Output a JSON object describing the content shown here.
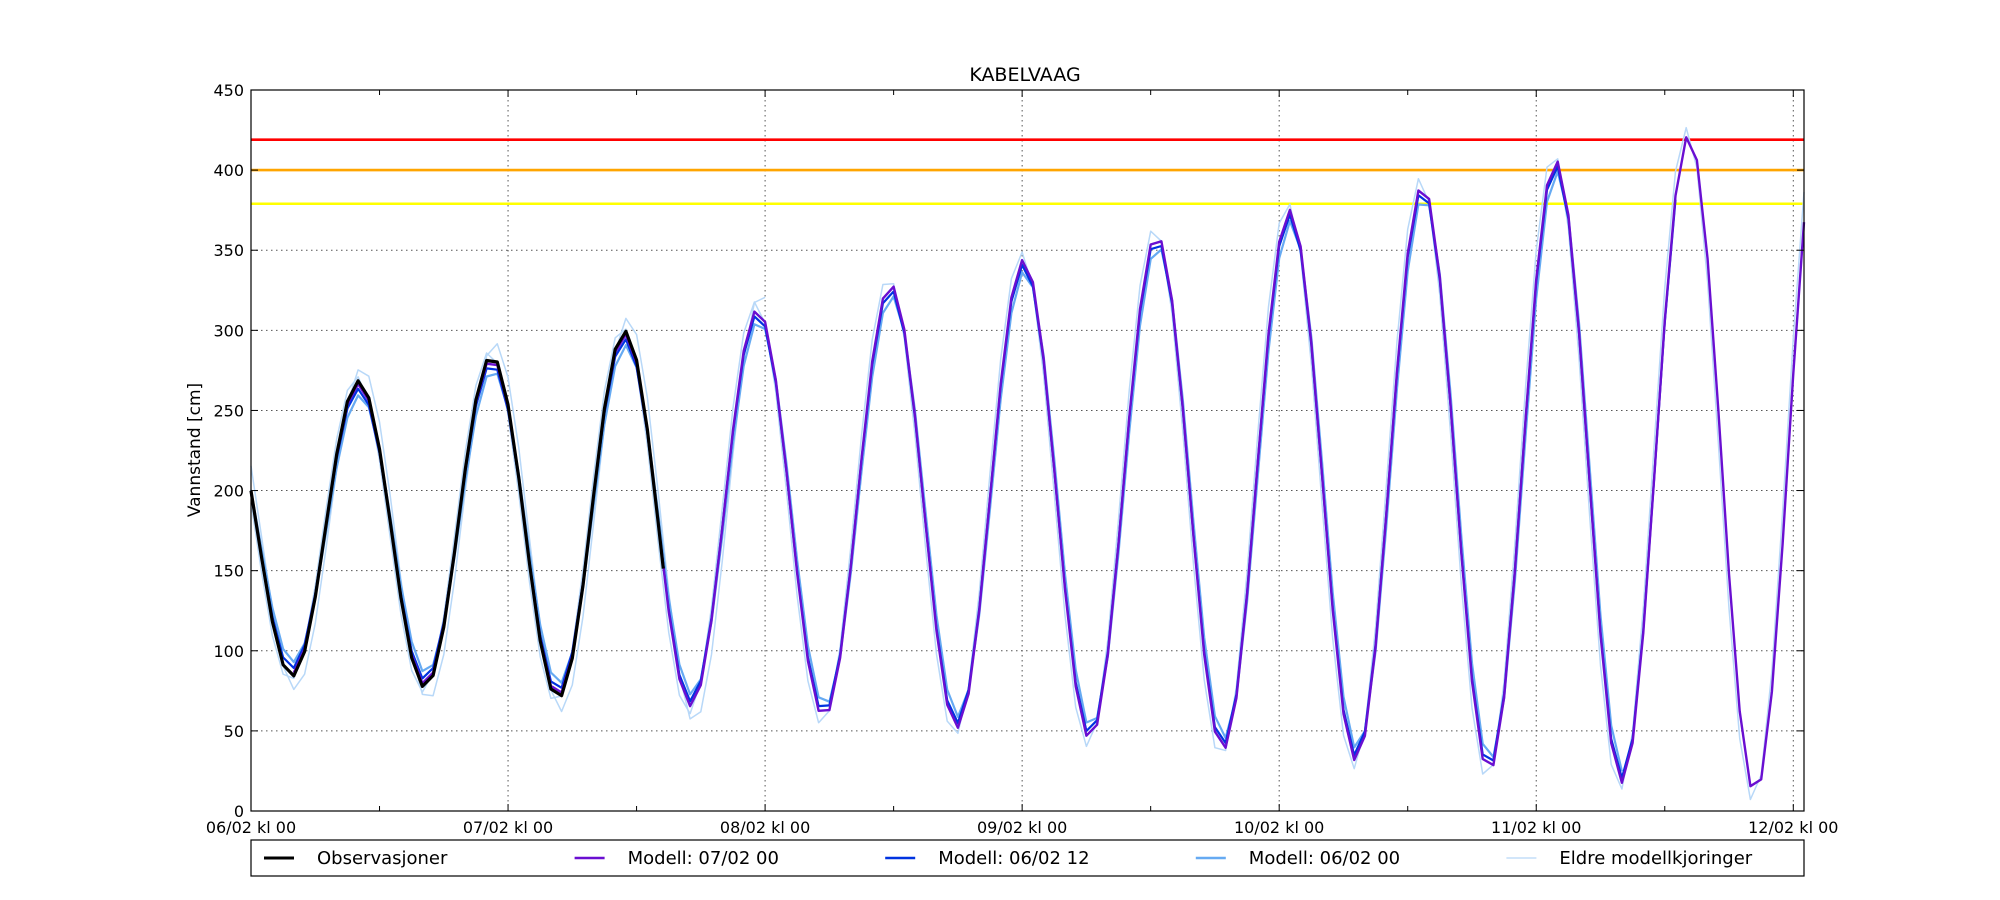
{
  "chart_data": {
    "type": "line",
    "title": "KABELVAAG",
    "ylabel": "Vannstand [cm]",
    "xlabel": "",
    "ylim": [
      0,
      450
    ],
    "xlim_hours": [
      0,
      145
    ],
    "yticks": [
      0,
      50,
      100,
      150,
      200,
      250,
      300,
      350,
      400,
      450
    ],
    "x_tick_hours": [
      0,
      24,
      48,
      72,
      96,
      120,
      144
    ],
    "x_tick_labels": [
      "06/02 kl 00",
      "07/02 kl 00",
      "08/02 kl 00",
      "09/02 kl 00",
      "10/02 kl 00",
      "11/02 kl 00",
      "12/02 kl 00"
    ],
    "x_minor_hours": [
      12,
      36,
      60,
      84,
      108,
      132
    ],
    "grid": true,
    "legend_position": "bottom",
    "thresholds": [
      {
        "value": 419,
        "color": "#ff0000"
      },
      {
        "value": 400,
        "color": "#ffa500"
      },
      {
        "value": 379,
        "color": "#ffff00"
      }
    ],
    "tide_model": {
      "amp_base": 83,
      "amp_slope_per_hour": 0.9,
      "mean_base": 171,
      "mean_slope_per_hour": 0.35,
      "period_hours": 12.42,
      "first_peak_hour": 10
    },
    "series": [
      {
        "name": "Eldre modellkjoringer",
        "color": "#b8d8f8",
        "width": 1.5,
        "legend_width": 1.2,
        "h_start": 0,
        "h_end": 48,
        "amp_delta": 10,
        "phase_hours": 0.3
      },
      {
        "name": "Eldre modellkjoringer",
        "color": "#b8d8f8",
        "width": 1.5,
        "legend_width": 1.2,
        "h_start": 0,
        "h_end": 145,
        "amp_delta": 5,
        "phase_hours": -0.2
      },
      {
        "name": "Modell: 06/02 00",
        "color": "#66aaf2",
        "width": 2.2,
        "legend_width": 2.5,
        "h_start": 0,
        "h_end": 128,
        "amp_delta": -7,
        "phase_hours": 0.1
      },
      {
        "name": "Modell: 06/02 12",
        "color": "#0033e0",
        "width": 2.2,
        "legend_width": 2.5,
        "h_start": 0,
        "h_end": 133,
        "amp_delta": -3,
        "phase_hours": 0
      },
      {
        "name": "Modell: 07/02 00",
        "color": "#6a0fd1",
        "width": 2.4,
        "legend_width": 2.5,
        "h_start": 4,
        "h_end": 145,
        "amp_delta": 0,
        "phase_hours": 0
      },
      {
        "name": "Observasjoner",
        "color": "#000000",
        "width": 3.2,
        "legend_width": 3,
        "h_start": 0,
        "h_end": 38.5,
        "amp_delta": 2,
        "phase_hours": 0
      }
    ],
    "legend_order": [
      5,
      4,
      3,
      2,
      0
    ]
  }
}
